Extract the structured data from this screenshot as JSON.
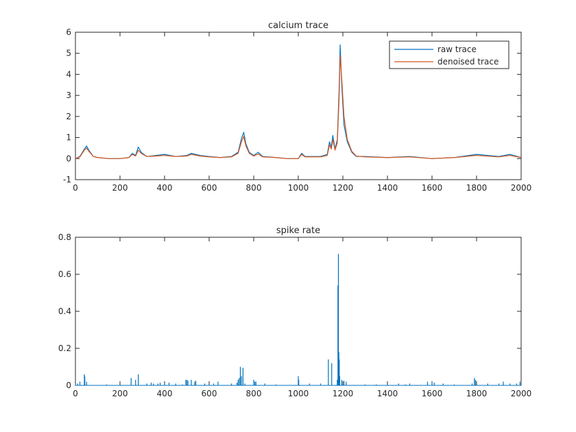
{
  "chart_data": [
    {
      "type": "line",
      "title": "calcium trace",
      "xlabel": "",
      "ylabel": "",
      "xlim": [
        0,
        2000
      ],
      "ylim": [
        -1,
        6
      ],
      "xticks": [
        0,
        200,
        400,
        600,
        800,
        1000,
        1200,
        1400,
        1600,
        1800,
        2000
      ],
      "yticks": [
        -1,
        0,
        1,
        2,
        3,
        4,
        5,
        6
      ],
      "grid": false,
      "legend": "top-right",
      "series": [
        {
          "name": "raw trace",
          "color": "#0072BD",
          "x": [
            0,
            20,
            40,
            50,
            60,
            80,
            100,
            150,
            200,
            240,
            255,
            270,
            282,
            295,
            320,
            360,
            400,
            450,
            500,
            520,
            560,
            600,
            650,
            700,
            730,
            745,
            755,
            765,
            780,
            800,
            820,
            840,
            900,
            950,
            1000,
            1015,
            1030,
            1100,
            1130,
            1140,
            1148,
            1155,
            1165,
            1175,
            1183,
            1188,
            1195,
            1205,
            1220,
            1240,
            1260,
            1300,
            1400,
            1500,
            1600,
            1700,
            1800,
            1900,
            1950,
            2000
          ],
          "y": [
            0.0,
            0.1,
            0.45,
            0.6,
            0.4,
            0.1,
            0.05,
            0.0,
            0.0,
            0.05,
            0.25,
            0.15,
            0.55,
            0.3,
            0.1,
            0.15,
            0.2,
            0.1,
            0.15,
            0.25,
            0.15,
            0.1,
            0.05,
            0.1,
            0.3,
            0.95,
            1.25,
            0.7,
            0.3,
            0.15,
            0.3,
            0.1,
            0.05,
            0.0,
            0.0,
            0.25,
            0.1,
            0.1,
            0.2,
            0.8,
            0.55,
            1.1,
            0.45,
            0.9,
            3.2,
            5.4,
            3.5,
            1.6,
            0.8,
            0.3,
            0.1,
            0.1,
            0.05,
            0.1,
            0.0,
            0.05,
            0.2,
            0.1,
            0.2,
            0.05
          ]
        },
        {
          "name": "denoised trace",
          "color": "#D95319",
          "x": [
            0,
            20,
            40,
            50,
            60,
            80,
            100,
            150,
            200,
            240,
            255,
            270,
            282,
            295,
            320,
            360,
            400,
            450,
            500,
            520,
            560,
            600,
            650,
            700,
            730,
            745,
            755,
            765,
            780,
            800,
            820,
            840,
            900,
            950,
            1000,
            1015,
            1030,
            1100,
            1130,
            1140,
            1148,
            1155,
            1165,
            1175,
            1183,
            1188,
            1195,
            1205,
            1220,
            1240,
            1260,
            1300,
            1400,
            1500,
            1600,
            1700,
            1800,
            1900,
            1950,
            2000
          ],
          "y": [
            0.0,
            0.08,
            0.4,
            0.5,
            0.35,
            0.1,
            0.05,
            0.0,
            0.0,
            0.05,
            0.2,
            0.12,
            0.4,
            0.25,
            0.1,
            0.12,
            0.15,
            0.1,
            0.12,
            0.2,
            0.12,
            0.08,
            0.05,
            0.08,
            0.25,
            0.8,
            1.05,
            0.6,
            0.25,
            0.12,
            0.22,
            0.08,
            0.05,
            0.0,
            0.0,
            0.2,
            0.08,
            0.08,
            0.15,
            0.65,
            0.45,
            0.9,
            0.4,
            0.75,
            2.8,
            4.9,
            3.8,
            2.0,
            0.9,
            0.35,
            0.12,
            0.08,
            0.05,
            0.08,
            0.0,
            0.05,
            0.15,
            0.08,
            0.15,
            0.05
          ]
        }
      ]
    },
    {
      "type": "bar",
      "title": "spike rate",
      "xlabel": "",
      "ylabel": "",
      "xlim": [
        0,
        2000
      ],
      "ylim": [
        0,
        0.8
      ],
      "xticks": [
        0,
        200,
        400,
        600,
        800,
        1000,
        1200,
        1400,
        1600,
        1800,
        2000
      ],
      "yticks": [
        0,
        0.2,
        0.4,
        0.6,
        0.8
      ],
      "grid": false,
      "series": [
        {
          "color": "#0072BD",
          "x": [
            10,
            20,
            40,
            42,
            50,
            140,
            250,
            270,
            282,
            320,
            340,
            350,
            370,
            380,
            400,
            420,
            450,
            480,
            495,
            500,
            505,
            520,
            535,
            540,
            580,
            600,
            620,
            640,
            700,
            725,
            730,
            735,
            740,
            745,
            752,
            760,
            800,
            805,
            810,
            850,
            900,
            1000,
            1002,
            1050,
            1100,
            1135,
            1150,
            1175,
            1178,
            1180,
            1182,
            1184,
            1186,
            1195,
            1205,
            1215,
            1300,
            1350,
            1400,
            1450,
            1480,
            1500,
            1580,
            1600,
            1610,
            1650,
            1700,
            1780,
            1790,
            1795,
            1850,
            1900,
            1920,
            1950,
            1980,
            1995
          ],
          "y": [
            0.01,
            0.02,
            0.06,
            0.05,
            0.02,
            0.005,
            0.04,
            0.03,
            0.06,
            0.01,
            0.015,
            0.01,
            0.01,
            0.015,
            0.01,
            0.015,
            0.01,
            0.005,
            0.03,
            0.03,
            0.025,
            0.03,
            0.02,
            0.025,
            0.01,
            0.005,
            0.01,
            0.02,
            0.01,
            0.015,
            0.03,
            0.04,
            0.1,
            0.05,
            0.095,
            0.01,
            0.03,
            0.02,
            0.02,
            0.01,
            0.005,
            0.05,
            0.03,
            0.01,
            0.01,
            0.14,
            0.12,
            0.03,
            0.54,
            0.71,
            0.18,
            0.14,
            0.05,
            0.03,
            0.025,
            0.02,
            0.005,
            0.005,
            0.005,
            0.01,
            0.005,
            0.01,
            0.02,
            0.02,
            0.015,
            0.01,
            0.005,
            0.01,
            0.04,
            0.03,
            0.01,
            0.01,
            0.02,
            0.01,
            0.01,
            0.02
          ]
        }
      ]
    }
  ]
}
